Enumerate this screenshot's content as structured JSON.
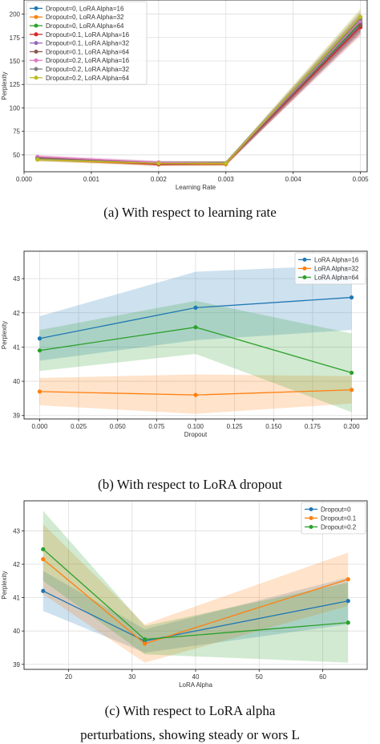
{
  "captions": {
    "a": "(a) With respect to learning rate",
    "b": "(b) With respect to LoRA dropout",
    "c": "(c) With respect to LoRA alpha"
  },
  "bottom_text": "perturbations, showing steady or wors L",
  "colors": {
    "blue": "#1f77b4",
    "orange": "#ff7f0e",
    "green": "#2ca02c",
    "red": "#d62728",
    "purple": "#9467bd",
    "brown": "#8c564b",
    "pink": "#e377c2",
    "gray": "#7f7f7f",
    "olive": "#bcbd22"
  },
  "chart_data": [
    {
      "type": "line",
      "xlabel": "Learning Rate",
      "ylabel": "Perplexity",
      "xlim": [
        0.0,
        0.0051
      ],
      "ylim": [
        32,
        215
      ],
      "xticks": [
        0.0,
        0.001,
        0.002,
        0.003,
        0.004,
        0.005
      ],
      "xtick_labels": [
        "0.000",
        "0.001",
        "0.002",
        "0.003",
        "0.004",
        "0.005"
      ],
      "yticks": [
        50,
        75,
        100,
        125,
        150,
        175,
        200
      ],
      "ytick_labels": [
        "50",
        "75",
        "100",
        "125",
        "150",
        "175",
        "200"
      ],
      "grid": true,
      "legend_position": "top-left",
      "x": [
        0.0002,
        0.002,
        0.003,
        0.005
      ],
      "series": [
        {
          "name": "Dropout=0, LoRA Alpha=16",
          "color": "blue",
          "values": [
            46,
            41,
            41,
            190
          ]
        },
        {
          "name": "Dropout=0, LoRA Alpha=32",
          "color": "orange",
          "values": [
            45,
            40,
            40,
            192
          ]
        },
        {
          "name": "Dropout=0, LoRA Alpha=64",
          "color": "green",
          "values": [
            46,
            41,
            41,
            191
          ]
        },
        {
          "name": "Dropout=0.1, LoRA Alpha=16",
          "color": "red",
          "values": [
            47,
            40,
            41,
            186
          ]
        },
        {
          "name": "Dropout=0.1, LoRA Alpha=32",
          "color": "purple",
          "values": [
            46,
            41,
            41,
            189
          ]
        },
        {
          "name": "Dropout=0.1, LoRA Alpha=64",
          "color": "brown",
          "values": [
            47,
            41,
            41,
            188
          ]
        },
        {
          "name": "Dropout=0.2, LoRA Alpha=16",
          "color": "pink",
          "values": [
            48,
            42,
            41,
            193
          ]
        },
        {
          "name": "Dropout=0.2, LoRA Alpha=32",
          "color": "gray",
          "values": [
            46,
            41,
            41,
            195
          ]
        },
        {
          "name": "Dropout=0.2, LoRA Alpha=64",
          "color": "olive",
          "values": [
            45,
            41,
            41,
            197
          ]
        }
      ],
      "band_halfwidth": [
        2,
        2,
        2,
        9
      ]
    },
    {
      "type": "line",
      "xlabel": "Dropout",
      "ylabel": "Perplexity",
      "xlim": [
        -0.01,
        0.21
      ],
      "ylim": [
        38.9,
        43.8
      ],
      "xticks": [
        0.0,
        0.025,
        0.05,
        0.075,
        0.1,
        0.125,
        0.15,
        0.175,
        0.2
      ],
      "xtick_labels": [
        "0.000",
        "0.025",
        "0.050",
        "0.075",
        "0.100",
        "0.125",
        "0.150",
        "0.175",
        "0.200"
      ],
      "yticks": [
        39,
        40,
        41,
        42,
        43
      ],
      "ytick_labels": [
        "39",
        "40",
        "41",
        "42",
        "43"
      ],
      "grid": true,
      "legend_position": "top-right",
      "x": [
        0.0,
        0.1,
        0.2
      ],
      "series": [
        {
          "name": "LoRA Alpha=16",
          "color": "blue",
          "values": [
            41.25,
            42.15,
            42.45
          ],
          "band_low": [
            40.6,
            41.2,
            41.5
          ],
          "band_high": [
            41.9,
            43.2,
            43.4
          ]
        },
        {
          "name": "LoRA Alpha=32",
          "color": "orange",
          "values": [
            39.7,
            39.6,
            39.75
          ],
          "band_low": [
            39.3,
            39.05,
            39.35
          ],
          "band_high": [
            40.1,
            40.2,
            40.15
          ]
        },
        {
          "name": "LoRA Alpha=64",
          "color": "green",
          "values": [
            40.9,
            41.58,
            40.25
          ],
          "band_low": [
            40.3,
            40.8,
            39.1
          ],
          "band_high": [
            41.5,
            42.35,
            41.4
          ]
        }
      ]
    },
    {
      "type": "line",
      "xlabel": "LoRA Alpha",
      "ylabel": "Perplexity",
      "xlim": [
        13,
        67
      ],
      "ylim": [
        38.85,
        43.9
      ],
      "xticks": [
        20,
        30,
        40,
        50,
        60
      ],
      "xtick_labels": [
        "20",
        "30",
        "40",
        "50",
        "60"
      ],
      "yticks": [
        39,
        40,
        41,
        42,
        43
      ],
      "ytick_labels": [
        "39",
        "40",
        "41",
        "42",
        "43"
      ],
      "grid": true,
      "legend_position": "top-right",
      "x": [
        16,
        32,
        64
      ],
      "series": [
        {
          "name": "Dropout=0",
          "color": "blue",
          "values": [
            41.2,
            39.7,
            40.9
          ],
          "band_low": [
            40.6,
            39.35,
            40.2
          ],
          "band_high": [
            41.8,
            40.05,
            41.6
          ]
        },
        {
          "name": "Dropout=0.1",
          "color": "orange",
          "values": [
            42.15,
            39.62,
            41.55
          ],
          "band_low": [
            41.1,
            39.05,
            40.75
          ],
          "band_high": [
            43.2,
            40.2,
            42.35
          ]
        },
        {
          "name": "Dropout=0.2",
          "color": "green",
          "values": [
            42.45,
            39.75,
            40.25
          ],
          "band_low": [
            41.5,
            39.3,
            39.05
          ],
          "band_high": [
            43.6,
            40.15,
            41.45
          ]
        }
      ]
    }
  ]
}
